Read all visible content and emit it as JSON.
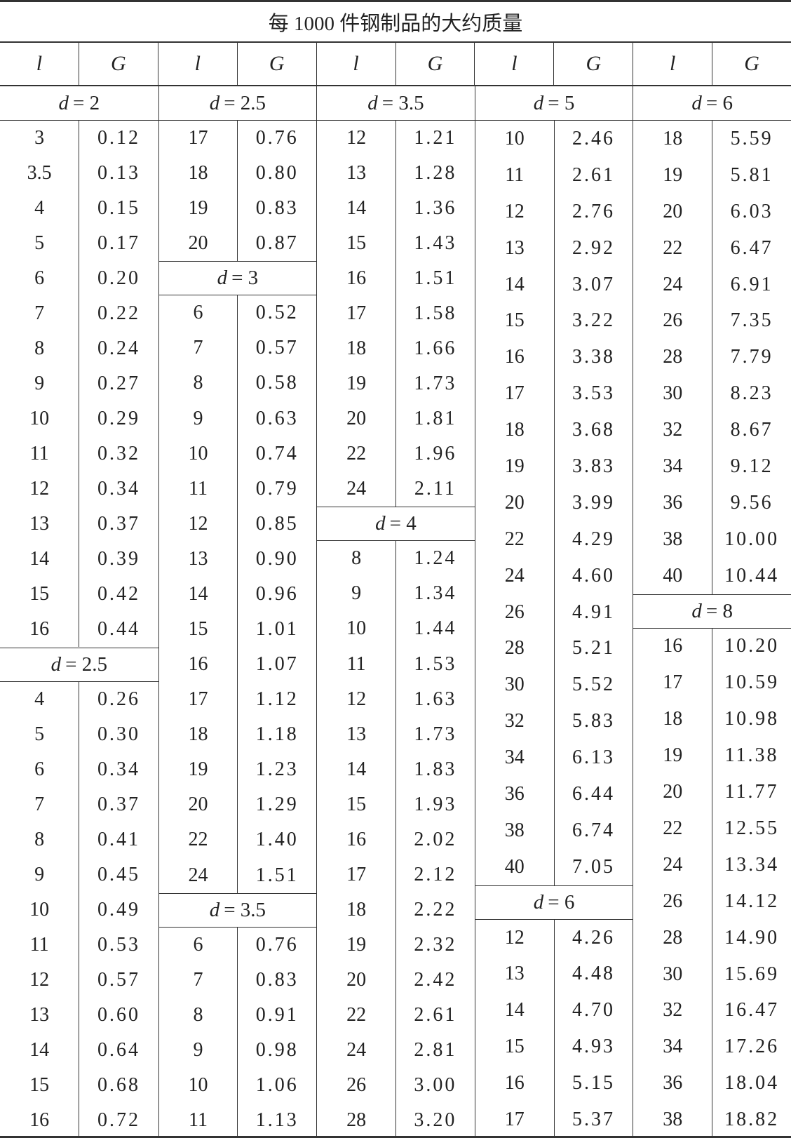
{
  "title": "每 1000 件钢制品的大约质量",
  "headers": [
    "l",
    "G",
    "l",
    "G",
    "l",
    "G",
    "l",
    "G",
    "l",
    "G"
  ],
  "columns": [
    [
      {
        "d": "d = 2",
        "rows": [
          [
            "3",
            "0.12"
          ],
          [
            "3.5",
            "0.13"
          ],
          [
            "4",
            "0.15"
          ],
          [
            "5",
            "0.17"
          ],
          [
            "6",
            "0.20"
          ],
          [
            "7",
            "0.22"
          ],
          [
            "8",
            "0.24"
          ],
          [
            "9",
            "0.27"
          ],
          [
            "10",
            "0.29"
          ],
          [
            "11",
            "0.32"
          ],
          [
            "12",
            "0.34"
          ],
          [
            "13",
            "0.37"
          ],
          [
            "14",
            "0.39"
          ],
          [
            "15",
            "0.42"
          ],
          [
            "16",
            "0.44"
          ]
        ]
      },
      {
        "d": "d = 2.5",
        "rows": [
          [
            "4",
            "0.26"
          ],
          [
            "5",
            "0.30"
          ],
          [
            "6",
            "0.34"
          ],
          [
            "7",
            "0.37"
          ],
          [
            "8",
            "0.41"
          ],
          [
            "9",
            "0.45"
          ],
          [
            "10",
            "0.49"
          ],
          [
            "11",
            "0.53"
          ],
          [
            "12",
            "0.57"
          ],
          [
            "13",
            "0.60"
          ],
          [
            "14",
            "0.64"
          ],
          [
            "15",
            "0.68"
          ],
          [
            "16",
            "0.72"
          ]
        ]
      }
    ],
    [
      {
        "d": "d = 2.5",
        "rows": [
          [
            "17",
            "0.76"
          ],
          [
            "18",
            "0.80"
          ],
          [
            "19",
            "0.83"
          ],
          [
            "20",
            "0.87"
          ]
        ]
      },
      {
        "d": "d = 3",
        "rows": [
          [
            "6",
            "0.52"
          ],
          [
            "7",
            "0.57"
          ],
          [
            "8",
            "0.58"
          ],
          [
            "9",
            "0.63"
          ],
          [
            "10",
            "0.74"
          ],
          [
            "11",
            "0.79"
          ],
          [
            "12",
            "0.85"
          ],
          [
            "13",
            "0.90"
          ],
          [
            "14",
            "0.96"
          ],
          [
            "15",
            "1.01"
          ],
          [
            "16",
            "1.07"
          ],
          [
            "17",
            "1.12"
          ],
          [
            "18",
            "1.18"
          ],
          [
            "19",
            "1.23"
          ],
          [
            "20",
            "1.29"
          ],
          [
            "22",
            "1.40"
          ],
          [
            "24",
            "1.51"
          ]
        ]
      },
      {
        "d": "d = 3.5",
        "rows": [
          [
            "6",
            "0.76"
          ],
          [
            "7",
            "0.83"
          ],
          [
            "8",
            "0.91"
          ],
          [
            "9",
            "0.98"
          ],
          [
            "10",
            "1.06"
          ],
          [
            "11",
            "1.13"
          ]
        ]
      }
    ],
    [
      {
        "d": "d = 3.5",
        "rows": [
          [
            "12",
            "1.21"
          ],
          [
            "13",
            "1.28"
          ],
          [
            "14",
            "1.36"
          ],
          [
            "15",
            "1.43"
          ],
          [
            "16",
            "1.51"
          ],
          [
            "17",
            "1.58"
          ],
          [
            "18",
            "1.66"
          ],
          [
            "19",
            "1.73"
          ],
          [
            "20",
            "1.81"
          ],
          [
            "22",
            "1.96"
          ],
          [
            "24",
            "2.11"
          ]
        ]
      },
      {
        "d": "d = 4",
        "rows": [
          [
            "8",
            "1.24"
          ],
          [
            "9",
            "1.34"
          ],
          [
            "10",
            "1.44"
          ],
          [
            "11",
            "1.53"
          ],
          [
            "12",
            "1.63"
          ],
          [
            "13",
            "1.73"
          ],
          [
            "14",
            "1.83"
          ],
          [
            "15",
            "1.93"
          ],
          [
            "16",
            "2.02"
          ],
          [
            "17",
            "2.12"
          ],
          [
            "18",
            "2.22"
          ],
          [
            "19",
            "2.32"
          ],
          [
            "20",
            "2.42"
          ],
          [
            "22",
            "2.61"
          ],
          [
            "24",
            "2.81"
          ],
          [
            "26",
            "3.00"
          ],
          [
            "28",
            "3.20"
          ]
        ]
      }
    ],
    [
      {
        "d": "d = 5",
        "rows": [
          [
            "10",
            "2.46"
          ],
          [
            "11",
            "2.61"
          ],
          [
            "12",
            "2.76"
          ],
          [
            "13",
            "2.92"
          ],
          [
            "14",
            "3.07"
          ],
          [
            "15",
            "3.22"
          ],
          [
            "16",
            "3.38"
          ],
          [
            "17",
            "3.53"
          ],
          [
            "18",
            "3.68"
          ],
          [
            "19",
            "3.83"
          ],
          [
            "20",
            "3.99"
          ],
          [
            "22",
            "4.29"
          ],
          [
            "24",
            "4.60"
          ],
          [
            "26",
            "4.91"
          ],
          [
            "28",
            "5.21"
          ],
          [
            "30",
            "5.52"
          ],
          [
            "32",
            "5.83"
          ],
          [
            "34",
            "6.13"
          ],
          [
            "36",
            "6.44"
          ],
          [
            "38",
            "6.74"
          ],
          [
            "40",
            "7.05"
          ]
        ]
      },
      {
        "d": "d = 6",
        "rows": [
          [
            "12",
            "4.26"
          ],
          [
            "13",
            "4.48"
          ],
          [
            "14",
            "4.70"
          ],
          [
            "15",
            "4.93"
          ],
          [
            "16",
            "5.15"
          ],
          [
            "17",
            "5.37"
          ]
        ]
      }
    ],
    [
      {
        "d": "d = 6",
        "rows": [
          [
            "18",
            "5.59"
          ],
          [
            "19",
            "5.81"
          ],
          [
            "20",
            "6.03"
          ],
          [
            "22",
            "6.47"
          ],
          [
            "24",
            "6.91"
          ],
          [
            "26",
            "7.35"
          ],
          [
            "28",
            "7.79"
          ],
          [
            "30",
            "8.23"
          ],
          [
            "32",
            "8.67"
          ],
          [
            "34",
            "9.12"
          ],
          [
            "36",
            "9.56"
          ],
          [
            "38",
            "10.00"
          ],
          [
            "40",
            "10.44"
          ]
        ]
      },
      {
        "d": "d = 8",
        "rows": [
          [
            "16",
            "10.20"
          ],
          [
            "17",
            "10.59"
          ],
          [
            "18",
            "10.98"
          ],
          [
            "19",
            "11.38"
          ],
          [
            "20",
            "11.77"
          ],
          [
            "22",
            "12.55"
          ],
          [
            "24",
            "13.34"
          ],
          [
            "26",
            "14.12"
          ],
          [
            "28",
            "14.90"
          ],
          [
            "30",
            "15.69"
          ],
          [
            "32",
            "16.47"
          ],
          [
            "34",
            "17.26"
          ],
          [
            "36",
            "18.04"
          ],
          [
            "38",
            "18.82"
          ]
        ]
      }
    ]
  ]
}
